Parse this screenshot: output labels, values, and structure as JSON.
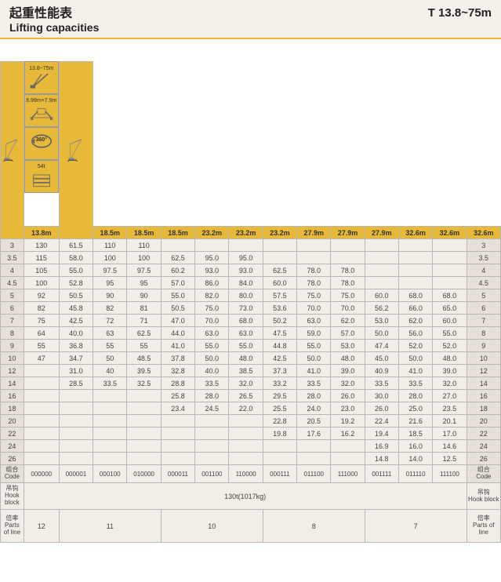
{
  "header": {
    "title_cn": "起重性能表",
    "title_en": "Lifting capacities",
    "range": "T  13.8~75m"
  },
  "icons": {
    "boom_range": "13.8~75m",
    "outrigger": "8.99m×7.9m",
    "rotation": "360°",
    "counterweight": "54t"
  },
  "columns": [
    "13.8m",
    "18.5m",
    "18.5m",
    "18.5m",
    "23.2m",
    "23.2m",
    "23.2m",
    "27.9m",
    "27.9m",
    "27.9m",
    "32.6m",
    "32.6m",
    "32.6m"
  ],
  "row_labels": [
    "3",
    "3.5",
    "4",
    "4.5",
    "5",
    "6",
    "7",
    "8",
    "9",
    "10",
    "12",
    "14",
    "16",
    "18",
    "20",
    "22",
    "24",
    "26"
  ],
  "data": [
    [
      "130",
      "61.5",
      "110",
      "110",
      "",
      "",
      "",
      "",
      "",
      "",
      "",
      "",
      ""
    ],
    [
      "115",
      "58.0",
      "100",
      "100",
      "62.5",
      "95.0",
      "95.0",
      "",
      "",
      "",
      "",
      "",
      ""
    ],
    [
      "105",
      "55.0",
      "97.5",
      "97.5",
      "60.2",
      "93.0",
      "93.0",
      "62.5",
      "78.0",
      "78.0",
      "",
      "",
      ""
    ],
    [
      "100",
      "52.8",
      "95",
      "95",
      "57.0",
      "86.0",
      "84.0",
      "60.0",
      "78.0",
      "78.0",
      "",
      "",
      ""
    ],
    [
      "92",
      "50.5",
      "90",
      "90",
      "55.0",
      "82.0",
      "80.0",
      "57.5",
      "75.0",
      "75.0",
      "60.0",
      "68.0",
      "68.0"
    ],
    [
      "82",
      "45.8",
      "82",
      "81",
      "50.5",
      "75.0",
      "73.0",
      "53.6",
      "70.0",
      "70.0",
      "56.2",
      "66.0",
      "65.0"
    ],
    [
      "75",
      "42.5",
      "72",
      "71",
      "47.0",
      "70.0",
      "68.0",
      "50.2",
      "63.0",
      "62.0",
      "53.0",
      "62.0",
      "60.0"
    ],
    [
      "64",
      "40.0",
      "63",
      "62.5",
      "44.0",
      "63.0",
      "63.0",
      "47.5",
      "59.0",
      "57.0",
      "50.0",
      "56.0",
      "55.0"
    ],
    [
      "55",
      "36.8",
      "55",
      "55",
      "41.0",
      "55.0",
      "55.0",
      "44.8",
      "55.0",
      "53.0",
      "47.4",
      "52.0",
      "52.0"
    ],
    [
      "47",
      "34.7",
      "50",
      "48.5",
      "37.8",
      "50.0",
      "48.0",
      "42.5",
      "50.0",
      "48.0",
      "45.0",
      "50.0",
      "48.0"
    ],
    [
      "",
      "31.0",
      "40",
      "39.5",
      "32.8",
      "40.0",
      "38.5",
      "37.3",
      "41.0",
      "39.0",
      "40.9",
      "41.0",
      "39.0"
    ],
    [
      "",
      "28.5",
      "33.5",
      "32.5",
      "28.8",
      "33.5",
      "32.0",
      "33.2",
      "33.5",
      "32.0",
      "33.5",
      "33.5",
      "32.0"
    ],
    [
      "",
      "",
      "",
      "",
      "25.8",
      "28.0",
      "26.5",
      "29.5",
      "28.0",
      "26.0",
      "30.0",
      "28.0",
      "27.0"
    ],
    [
      "",
      "",
      "",
      "",
      "23.4",
      "24.5",
      "22.0",
      "25.5",
      "24.0",
      "23.0",
      "26.0",
      "25.0",
      "23.5"
    ],
    [
      "",
      "",
      "",
      "",
      "",
      "",
      "",
      "22.8",
      "20.5",
      "19.2",
      "22.4",
      "21.6",
      "20.1"
    ],
    [
      "",
      "",
      "",
      "",
      "",
      "",
      "",
      "19.8",
      "17.6",
      "16.2",
      "19.4",
      "18.5",
      "17.0"
    ],
    [
      "",
      "",
      "",
      "",
      "",
      "",
      "",
      "",
      "",
      "",
      "16.9",
      "16.0",
      "14.6"
    ],
    [
      "",
      "",
      "",
      "",
      "",
      "",
      "",
      "",
      "",
      "",
      "14.8",
      "14.0",
      "12.5"
    ]
  ],
  "code_label_cn": "组合",
  "code_label_en": "Code",
  "codes": [
    "000000",
    "000001",
    "000100",
    "010000",
    "000011",
    "001100",
    "110000",
    "000111",
    "011100",
    "111000",
    "001111",
    "011110",
    "111100"
  ],
  "hook_label_cn": "吊钩",
  "hook_label_en": "Hook block",
  "hook_value": "130t(1017kg)",
  "parts_label_cn": "倍率",
  "parts_label_en": "Parts of line",
  "parts": [
    {
      "span": 1,
      "value": "12"
    },
    {
      "span": 3,
      "value": "11"
    },
    {
      "span": 3,
      "value": "10"
    },
    {
      "span": 3,
      "value": "8"
    },
    {
      "span": 3,
      "value": "7"
    }
  ],
  "style": {
    "header_bg": "#e8b838",
    "side_bg": "#e6e0d8",
    "data_bg": "#f2ede6",
    "border": "#b8b8b8"
  }
}
